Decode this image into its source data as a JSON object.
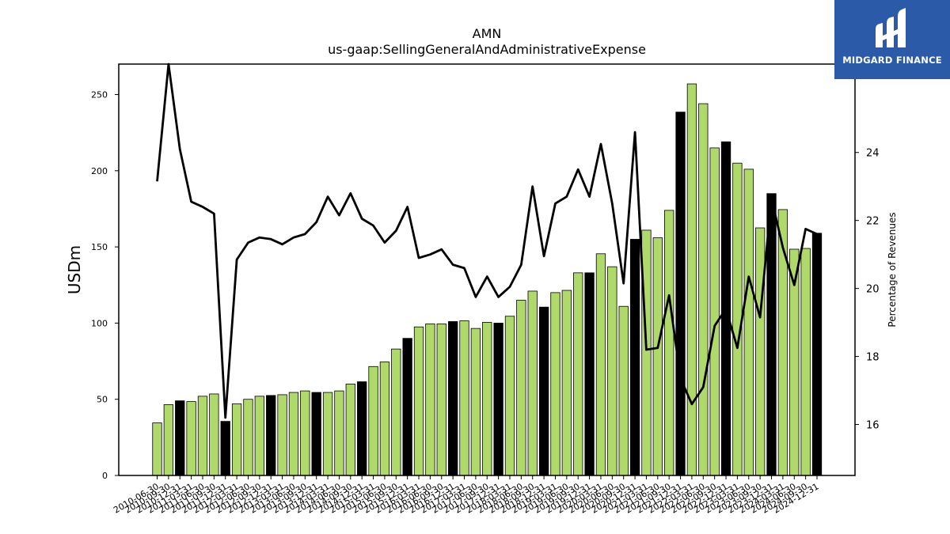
{
  "brand": {
    "name": "MIDGARD FINANCE",
    "icon": "midgard-logo-mark",
    "bg_color": "#2b5aa8"
  },
  "chart_data": {
    "type": "bar",
    "title": "AMN",
    "subtitle": "us-gaap:SellingGeneralAndAdministrativeExpense",
    "ylabel": "USDm",
    "y2label": "Percentage of Revenues",
    "ylim": [
      0,
      270
    ],
    "y2lim": [
      14.5,
      26.6
    ],
    "yticks": [
      0,
      50,
      100,
      150,
      200,
      250
    ],
    "y2ticks": [
      16,
      18,
      20,
      22,
      24
    ],
    "grid": false,
    "legend": "none",
    "colors": {
      "quarter": "#b0d96b",
      "fiscal_year_end": "#000000",
      "line": "#000000"
    },
    "categories": [
      "2010-06-30",
      "2010-09-30",
      "2010-12-31",
      "2011-03-31",
      "2011-06-30",
      "2011-09-30",
      "2011-12-31",
      "2012-03-31",
      "2012-06-30",
      "2012-09-30",
      "2012-12-31",
      "2013-03-31",
      "2013-06-30",
      "2013-09-30",
      "2013-12-31",
      "2014-03-31",
      "2014-06-30",
      "2014-09-30",
      "2014-12-31",
      "2015-03-31",
      "2015-06-30",
      "2015-09-30",
      "2015-12-31",
      "2016-03-31",
      "2016-06-30",
      "2016-09-30",
      "2016-12-31",
      "2017-03-31",
      "2017-06-30",
      "2017-09-30",
      "2017-12-31",
      "2018-03-31",
      "2018-06-30",
      "2018-09-30",
      "2018-12-31",
      "2019-03-31",
      "2019-06-30",
      "2019-09-30",
      "2019-12-31",
      "2020-03-31",
      "2020-06-30",
      "2020-09-30",
      "2020-12-31",
      "2021-03-31",
      "2021-06-30",
      "2021-09-30",
      "2021-12-31",
      "2022-03-31",
      "2022-06-30",
      "2022-09-30",
      "2022-12-31",
      "2023-03-31",
      "2023-06-30",
      "2023-09-30",
      "2023-12-31",
      "2024-03-31",
      "2024-06-30",
      "2024-09-30",
      "2024-12-31"
    ],
    "series": [
      {
        "kind": "bar",
        "axis": "left",
        "values": [
          34.5,
          46.5,
          49,
          48.5,
          52,
          53.5,
          35.5,
          47,
          50,
          52,
          52.5,
          53,
          54.5,
          55.5,
          54.5,
          54.5,
          55.5,
          60,
          61.5,
          71.5,
          74.5,
          83,
          90,
          97.5,
          99.5,
          99.5,
          101,
          101.5,
          96.5,
          100.5,
          100,
          104.5,
          115,
          121,
          110.5,
          120,
          121.5,
          133,
          133,
          145.5,
          137,
          111,
          155,
          161,
          156,
          174,
          238.5,
          257,
          244,
          215,
          219,
          205,
          201,
          162.5,
          185,
          174.5,
          148.5,
          149,
          159
        ],
        "year_end": [
          false,
          false,
          true,
          false,
          false,
          false,
          true,
          false,
          false,
          false,
          true,
          false,
          false,
          false,
          true,
          false,
          false,
          false,
          true,
          false,
          false,
          false,
          true,
          false,
          false,
          false,
          true,
          false,
          false,
          false,
          true,
          false,
          false,
          false,
          true,
          false,
          false,
          false,
          true,
          false,
          false,
          false,
          true,
          false,
          false,
          false,
          true,
          false,
          false,
          false,
          true,
          false,
          false,
          false,
          true,
          false,
          false,
          false,
          true
        ]
      },
      {
        "kind": "line",
        "axis": "right",
        "values": [
          23.15,
          26.6,
          24.1,
          22.55,
          22.4,
          22.2,
          16.2,
          20.85,
          21.35,
          21.5,
          21.45,
          21.3,
          21.5,
          21.6,
          21.95,
          22.7,
          22.15,
          22.8,
          22.05,
          21.85,
          21.35,
          21.7,
          22.4,
          20.9,
          21.0,
          21.15,
          20.7,
          20.6,
          19.75,
          20.35,
          19.75,
          20.05,
          20.7,
          23.0,
          20.95,
          22.5,
          22.7,
          23.5,
          22.7,
          24.25,
          22.5,
          20.15,
          24.6,
          18.2,
          18.25,
          19.8,
          17.35,
          16.6,
          17.1,
          18.9,
          19.4,
          18.25,
          20.35,
          19.15,
          22.65,
          21.2,
          20.1,
          21.75,
          21.6
        ]
      }
    ]
  }
}
